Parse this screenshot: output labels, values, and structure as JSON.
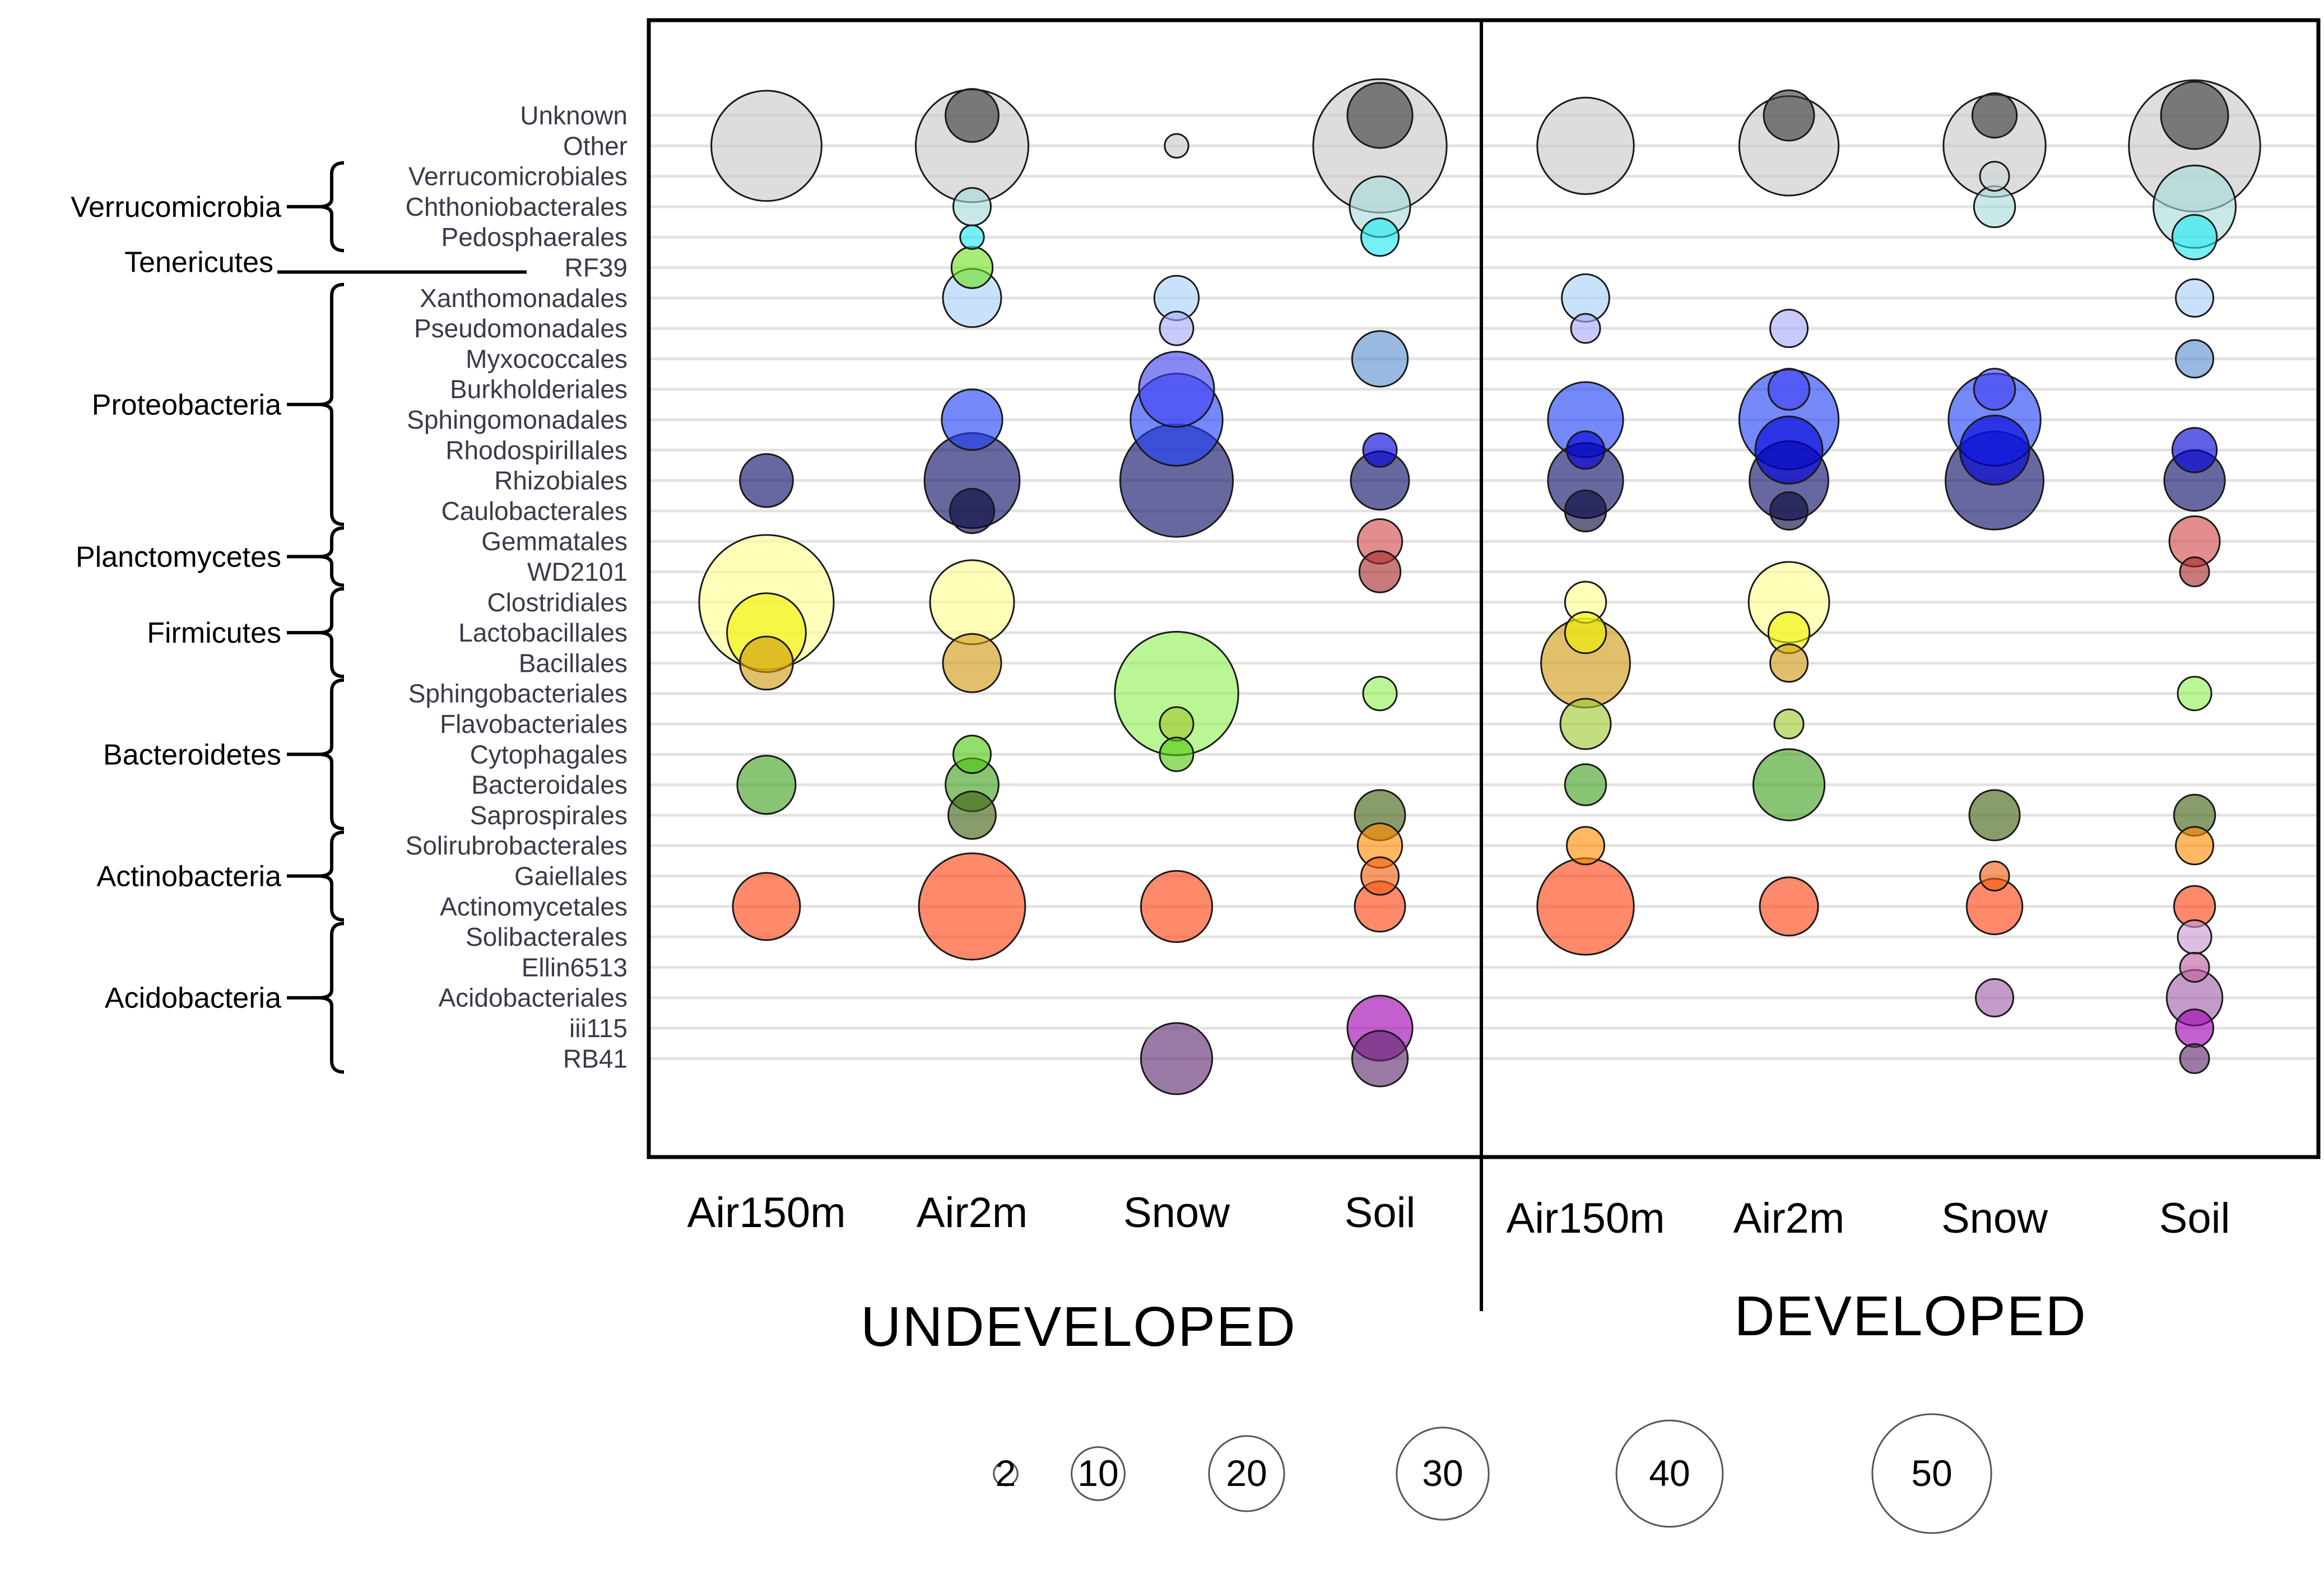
{
  "chart_data": {
    "type": "bubble",
    "rows": [
      "Unknown",
      "Other",
      "Verrucomicrobiales",
      "Chthoniobacterales",
      "Pedosphaerales",
      "RF39",
      "Xanthomonadales",
      "Pseudomonadales",
      "Myxococcales",
      "Burkholderiales",
      "Sphingomonadales",
      "Rhodospirillales",
      "Rhizobiales",
      "Caulobacterales",
      "Gemmatales",
      "WD2101",
      "Clostridiales",
      "Lactobacillales",
      "Bacillales",
      "Sphingobacteriales",
      "Flavobacteriales",
      "Cytophagales",
      "Bacteroidales",
      "Saprospirales",
      "Solirubrobacterales",
      "Gaiellales",
      "Actinomycetales",
      "Solibacterales",
      "Ellin6513",
      "Acidobacteriales",
      "iii115",
      "RB41"
    ],
    "row_colors": {
      "Unknown": "#3a3a3a",
      "Other": "#c8c8c8",
      "Verrucomicrobiales": "#d0d8d8",
      "Chthoniobacterales": "#a8dcdc",
      "Pedosphaerales": "#20e8f0",
      "RF39": "#70e020",
      "Xanthomonadales": "#a8d0f8",
      "Pseudomonadales": "#a8a8f8",
      "Myxococcales": "#5890d0",
      "Burkholderiales": "#4040f0",
      "Sphingomonadales": "#2040f8",
      "Rhodospirillales": "#0000d8",
      "Rhizobiales": "#0c0c68",
      "Caulobacterales": "#06063a",
      "Gemmatales": "#d04848",
      "WD2101": "#a82828",
      "Clostridiales": "#ffff90",
      "Lactobacillales": "#f0f000",
      "Bacillales": "#d09a10",
      "Sphingobacteriales": "#90f050",
      "Flavobacteriales": "#a0c830",
      "Cytophagales": "#50c810",
      "Bacteroidales": "#40a020",
      "Saprospirales": "#406010",
      "Solirubrobacterales": "#ff8c00",
      "Gaiellales": "#f06010",
      "Actinomycetales": "#ff4010",
      "Solibacterales": "#c898d0",
      "Ellin6513": "#c060a0",
      "Acidobacteriales": "#a060a8",
      "iii115": "#a000b0",
      "RB41": "#602870"
    },
    "phyla": [
      {
        "name": "Verrucomicrobia",
        "members": [
          "Verrucomicrobiales",
          "Chthoniobacterales",
          "Pedosphaerales"
        ]
      },
      {
        "name": "Tenericutes",
        "members": [
          "RF39"
        ]
      },
      {
        "name": "Proteobacteria",
        "members": [
          "Xanthomonadales",
          "Pseudomonadales",
          "Myxococcales",
          "Burkholderiales",
          "Sphingomonadales",
          "Rhodospirillales",
          "Rhizobiales",
          "Caulobacterales"
        ]
      },
      {
        "name": "Planctomycetes",
        "members": [
          "Gemmatales",
          "WD2101"
        ]
      },
      {
        "name": "Firmicutes",
        "members": [
          "Clostridiales",
          "Lactobacillales",
          "Bacillales"
        ]
      },
      {
        "name": "Bacteroidetes",
        "members": [
          "Sphingobacteriales",
          "Flavobacteriales",
          "Cytophagales",
          "Bacteroidales",
          "Saprospirales"
        ]
      },
      {
        "name": "Actinobacteria",
        "members": [
          "Solirubrobacterales",
          "Gaiellales",
          "Actinomycetales"
        ]
      },
      {
        "name": "Acidobacteria",
        "members": [
          "Solibacterales",
          "Ellin6513",
          "Acidobacteriales",
          "iii115",
          "RB41"
        ]
      }
    ],
    "groups": [
      {
        "name": "UNDEVELOPED",
        "columns": [
          "Air150m",
          "Air2m",
          "Snow",
          "Soil"
        ]
      },
      {
        "name": "DEVELOPED",
        "columns": [
          "Air150m",
          "Air2m",
          "Snow",
          "Soil"
        ]
      }
    ],
    "size_legend": [
      2,
      10,
      20,
      30,
      40,
      50
    ],
    "points": [
      {
        "group": "UNDEVELOPED",
        "column": "Air150m",
        "row": "Other",
        "value": 43
      },
      {
        "group": "UNDEVELOPED",
        "column": "Air150m",
        "row": "Rhizobiales",
        "value": 10
      },
      {
        "group": "UNDEVELOPED",
        "column": "Air150m",
        "row": "Clostridiales",
        "value": 64
      },
      {
        "group": "UNDEVELOPED",
        "column": "Air150m",
        "row": "Lactobacillales",
        "value": 22
      },
      {
        "group": "UNDEVELOPED",
        "column": "Air150m",
        "row": "Bacillales",
        "value": 10
      },
      {
        "group": "UNDEVELOPED",
        "column": "Air150m",
        "row": "Bacteroidales",
        "value": 12
      },
      {
        "group": "UNDEVELOPED",
        "column": "Air150m",
        "row": "Actinomycetales",
        "value": 16
      },
      {
        "group": "UNDEVELOPED",
        "column": "Air2m",
        "row": "Other",
        "value": 45
      },
      {
        "group": "UNDEVELOPED",
        "column": "Air2m",
        "row": "Unknown",
        "value": 10
      },
      {
        "group": "UNDEVELOPED",
        "column": "Air2m",
        "row": "Chthoniobacterales",
        "value": 5
      },
      {
        "group": "UNDEVELOPED",
        "column": "Air2m",
        "row": "Pedosphaerales",
        "value": 2
      },
      {
        "group": "UNDEVELOPED",
        "column": "Air2m",
        "row": "RF39",
        "value": 6
      },
      {
        "group": "UNDEVELOPED",
        "column": "Air2m",
        "row": "Xanthomonadales",
        "value": 12
      },
      {
        "group": "UNDEVELOPED",
        "column": "Air2m",
        "row": "Sphingomonadales",
        "value": 13
      },
      {
        "group": "UNDEVELOPED",
        "column": "Air2m",
        "row": "Rhizobiales",
        "value": 32
      },
      {
        "group": "UNDEVELOPED",
        "column": "Air2m",
        "row": "Caulobacterales",
        "value": 7
      },
      {
        "group": "UNDEVELOPED",
        "column": "Air2m",
        "row": "Clostridiales",
        "value": 25
      },
      {
        "group": "UNDEVELOPED",
        "column": "Air2m",
        "row": "Bacillales",
        "value": 12
      },
      {
        "group": "UNDEVELOPED",
        "column": "Air2m",
        "row": "Cytophagales",
        "value": 5
      },
      {
        "group": "UNDEVELOPED",
        "column": "Air2m",
        "row": "Bacteroidales",
        "value": 10
      },
      {
        "group": "UNDEVELOPED",
        "column": "Air2m",
        "row": "Saprospirales",
        "value": 8
      },
      {
        "group": "UNDEVELOPED",
        "column": "Air2m",
        "row": "Actinomycetales",
        "value": 40
      },
      {
        "group": "UNDEVELOPED",
        "column": "Snow",
        "row": "Other",
        "value": 2
      },
      {
        "group": "UNDEVELOPED",
        "column": "Snow",
        "row": "Xanthomonadales",
        "value": 7
      },
      {
        "group": "UNDEVELOPED",
        "column": "Snow",
        "row": "Pseudomonadales",
        "value": 4
      },
      {
        "group": "UNDEVELOPED",
        "column": "Snow",
        "row": "Burkholderiales",
        "value": 20
      },
      {
        "group": "UNDEVELOPED",
        "column": "Snow",
        "row": "Sphingomonadales",
        "value": 30
      },
      {
        "group": "UNDEVELOPED",
        "column": "Snow",
        "row": "Rhizobiales",
        "value": 45
      },
      {
        "group": "UNDEVELOPED",
        "column": "Snow",
        "row": "Sphingobacteriales",
        "value": 54
      },
      {
        "group": "UNDEVELOPED",
        "column": "Snow",
        "row": "Flavobacteriales",
        "value": 4
      },
      {
        "group": "UNDEVELOPED",
        "column": "Snow",
        "row": "Cytophagales",
        "value": 4
      },
      {
        "group": "UNDEVELOPED",
        "column": "Snow",
        "row": "Actinomycetales",
        "value": 18
      },
      {
        "group": "UNDEVELOPED",
        "column": "Snow",
        "row": "RB41",
        "value": 18
      },
      {
        "group": "UNDEVELOPED",
        "column": "Soil",
        "row": "Other",
        "value": 63
      },
      {
        "group": "UNDEVELOPED",
        "column": "Soil",
        "row": "Unknown",
        "value": 15
      },
      {
        "group": "UNDEVELOPED",
        "column": "Soil",
        "row": "Chthoniobacterales",
        "value": 13
      },
      {
        "group": "UNDEVELOPED",
        "column": "Soil",
        "row": "Pedosphaerales",
        "value": 5
      },
      {
        "group": "UNDEVELOPED",
        "column": "Soil",
        "row": "Myxococcales",
        "value": 11
      },
      {
        "group": "UNDEVELOPED",
        "column": "Soil",
        "row": "Rhodospirillales",
        "value": 4
      },
      {
        "group": "UNDEVELOPED",
        "column": "Soil",
        "row": "Rhizobiales",
        "value": 12
      },
      {
        "group": "UNDEVELOPED",
        "column": "Soil",
        "row": "Gemmatales",
        "value": 7
      },
      {
        "group": "UNDEVELOPED",
        "column": "Soil",
        "row": "WD2101",
        "value": 6
      },
      {
        "group": "UNDEVELOPED",
        "column": "Soil",
        "row": "Sphingobacteriales",
        "value": 4
      },
      {
        "group": "UNDEVELOPED",
        "column": "Soil",
        "row": "Saprospirales",
        "value": 9
      },
      {
        "group": "UNDEVELOPED",
        "column": "Soil",
        "row": "Solirubrobacterales",
        "value": 7
      },
      {
        "group": "UNDEVELOPED",
        "column": "Soil",
        "row": "Gaiellales",
        "value": 5
      },
      {
        "group": "UNDEVELOPED",
        "column": "Soil",
        "row": "Actinomycetales",
        "value": 9
      },
      {
        "group": "UNDEVELOPED",
        "column": "Soil",
        "row": "iii115",
        "value": 15
      },
      {
        "group": "UNDEVELOPED",
        "column": "Soil",
        "row": "RB41",
        "value": 11
      },
      {
        "group": "DEVELOPED",
        "column": "Air150m",
        "row": "Other",
        "value": 33
      },
      {
        "group": "DEVELOPED",
        "column": "Air150m",
        "row": "Xanthomonadales",
        "value": 8
      },
      {
        "group": "DEVELOPED",
        "column": "Air150m",
        "row": "Pseudomonadales",
        "value": 3
      },
      {
        "group": "DEVELOPED",
        "column": "Air150m",
        "row": "Sphingomonadales",
        "value": 20
      },
      {
        "group": "DEVELOPED",
        "column": "Air150m",
        "row": "Rhodospirillales",
        "value": 5
      },
      {
        "group": "DEVELOPED",
        "column": "Air150m",
        "row": "Rhizobiales",
        "value": 20
      },
      {
        "group": "DEVELOPED",
        "column": "Air150m",
        "row": "Caulobacterales",
        "value": 6
      },
      {
        "group": "DEVELOPED",
        "column": "Air150m",
        "row": "Clostridiales",
        "value": 6
      },
      {
        "group": "DEVELOPED",
        "column": "Air150m",
        "row": "Lactobacillales",
        "value": 6
      },
      {
        "group": "DEVELOPED",
        "column": "Air150m",
        "row": "Bacillales",
        "value": 28
      },
      {
        "group": "DEVELOPED",
        "column": "Air150m",
        "row": "Flavobacteriales",
        "value": 9
      },
      {
        "group": "DEVELOPED",
        "column": "Air150m",
        "row": "Bacteroidales",
        "value": 6
      },
      {
        "group": "DEVELOPED",
        "column": "Air150m",
        "row": "Solirubrobacterales",
        "value": 5
      },
      {
        "group": "DEVELOPED",
        "column": "Air150m",
        "row": "Actinomycetales",
        "value": 33
      },
      {
        "group": "DEVELOPED",
        "column": "Air2m",
        "row": "Other",
        "value": 35
      },
      {
        "group": "DEVELOPED",
        "column": "Air2m",
        "row": "Unknown",
        "value": 9
      },
      {
        "group": "DEVELOPED",
        "column": "Air2m",
        "row": "Pseudomonadales",
        "value": 5
      },
      {
        "group": "DEVELOPED",
        "column": "Air2m",
        "row": "Burkholderiales",
        "value": 6
      },
      {
        "group": "DEVELOPED",
        "column": "Air2m",
        "row": "Sphingomonadales",
        "value": 35
      },
      {
        "group": "DEVELOPED",
        "column": "Air2m",
        "row": "Rhodospirillales",
        "value": 16
      },
      {
        "group": "DEVELOPED",
        "column": "Air2m",
        "row": "Rhizobiales",
        "value": 22
      },
      {
        "group": "DEVELOPED",
        "column": "Air2m",
        "row": "Caulobacterales",
        "value": 5
      },
      {
        "group": "DEVELOPED",
        "column": "Air2m",
        "row": "Clostridiales",
        "value": 23
      },
      {
        "group": "DEVELOPED",
        "column": "Air2m",
        "row": "Lactobacillales",
        "value": 6
      },
      {
        "group": "DEVELOPED",
        "column": "Air2m",
        "row": "Bacillales",
        "value": 5
      },
      {
        "group": "DEVELOPED",
        "column": "Air2m",
        "row": "Flavobacteriales",
        "value": 3
      },
      {
        "group": "DEVELOPED",
        "column": "Air2m",
        "row": "Bacteroidales",
        "value": 18
      },
      {
        "group": "DEVELOPED",
        "column": "Air2m",
        "row": "Actinomycetales",
        "value": 12
      },
      {
        "group": "DEVELOPED",
        "column": "Snow",
        "row": "Other",
        "value": 37
      },
      {
        "group": "DEVELOPED",
        "column": "Snow",
        "row": "Unknown",
        "value": 7
      },
      {
        "group": "DEVELOPED",
        "column": "Snow",
        "row": "Verrucomicrobiales",
        "value": 3
      },
      {
        "group": "DEVELOPED",
        "column": "Snow",
        "row": "Chthoniobacterales",
        "value": 6
      },
      {
        "group": "DEVELOPED",
        "column": "Snow",
        "row": "Burkholderiales",
        "value": 6
      },
      {
        "group": "DEVELOPED",
        "column": "Snow",
        "row": "Sphingomonadales",
        "value": 30
      },
      {
        "group": "DEVELOPED",
        "column": "Snow",
        "row": "Rhodospirillales",
        "value": 17
      },
      {
        "group": "DEVELOPED",
        "column": "Snow",
        "row": "Rhizobiales",
        "value": 34
      },
      {
        "group": "DEVELOPED",
        "column": "Snow",
        "row": "Saprospirales",
        "value": 9
      },
      {
        "group": "DEVELOPED",
        "column": "Snow",
        "row": "Gaiellales",
        "value": 3
      },
      {
        "group": "DEVELOPED",
        "column": "Snow",
        "row": "Actinomycetales",
        "value": 11
      },
      {
        "group": "DEVELOPED",
        "column": "Snow",
        "row": "Acidobacteriales",
        "value": 5
      },
      {
        "group": "DEVELOPED",
        "column": "Soil",
        "row": "Other",
        "value": 61
      },
      {
        "group": "DEVELOPED",
        "column": "Soil",
        "row": "Unknown",
        "value": 16
      },
      {
        "group": "DEVELOPED",
        "column": "Soil",
        "row": "Chthoniobacterales",
        "value": 24
      },
      {
        "group": "DEVELOPED",
        "column": "Soil",
        "row": "Pedosphaerales",
        "value": 7
      },
      {
        "group": "DEVELOPED",
        "column": "Soil",
        "row": "Xanthomonadales",
        "value": 5
      },
      {
        "group": "DEVELOPED",
        "column": "Soil",
        "row": "Myxococcales",
        "value": 5
      },
      {
        "group": "DEVELOPED",
        "column": "Soil",
        "row": "Rhodospirillales",
        "value": 7
      },
      {
        "group": "DEVELOPED",
        "column": "Soil",
        "row": "Rhizobiales",
        "value": 13
      },
      {
        "group": "DEVELOPED",
        "column": "Soil",
        "row": "Gemmatales",
        "value": 9
      },
      {
        "group": "DEVELOPED",
        "column": "Soil",
        "row": "WD2101",
        "value": 3
      },
      {
        "group": "DEVELOPED",
        "column": "Soil",
        "row": "Sphingobacteriales",
        "value": 4
      },
      {
        "group": "DEVELOPED",
        "column": "Soil",
        "row": "Saprospirales",
        "value": 6
      },
      {
        "group": "DEVELOPED",
        "column": "Soil",
        "row": "Solirubrobacterales",
        "value": 5
      },
      {
        "group": "DEVELOPED",
        "column": "Soil",
        "row": "Actinomycetales",
        "value": 6
      },
      {
        "group": "DEVELOPED",
        "column": "Soil",
        "row": "Solibacterales",
        "value": 4
      },
      {
        "group": "DEVELOPED",
        "column": "Soil",
        "row": "Ellin6513",
        "value": 3
      },
      {
        "group": "DEVELOPED",
        "column": "Soil",
        "row": "Acidobacteriales",
        "value": 11
      },
      {
        "group": "DEVELOPED",
        "column": "Soil",
        "row": "iii115",
        "value": 5
      },
      {
        "group": "DEVELOPED",
        "column": "Soil",
        "row": "RB41",
        "value": 3
      }
    ]
  }
}
